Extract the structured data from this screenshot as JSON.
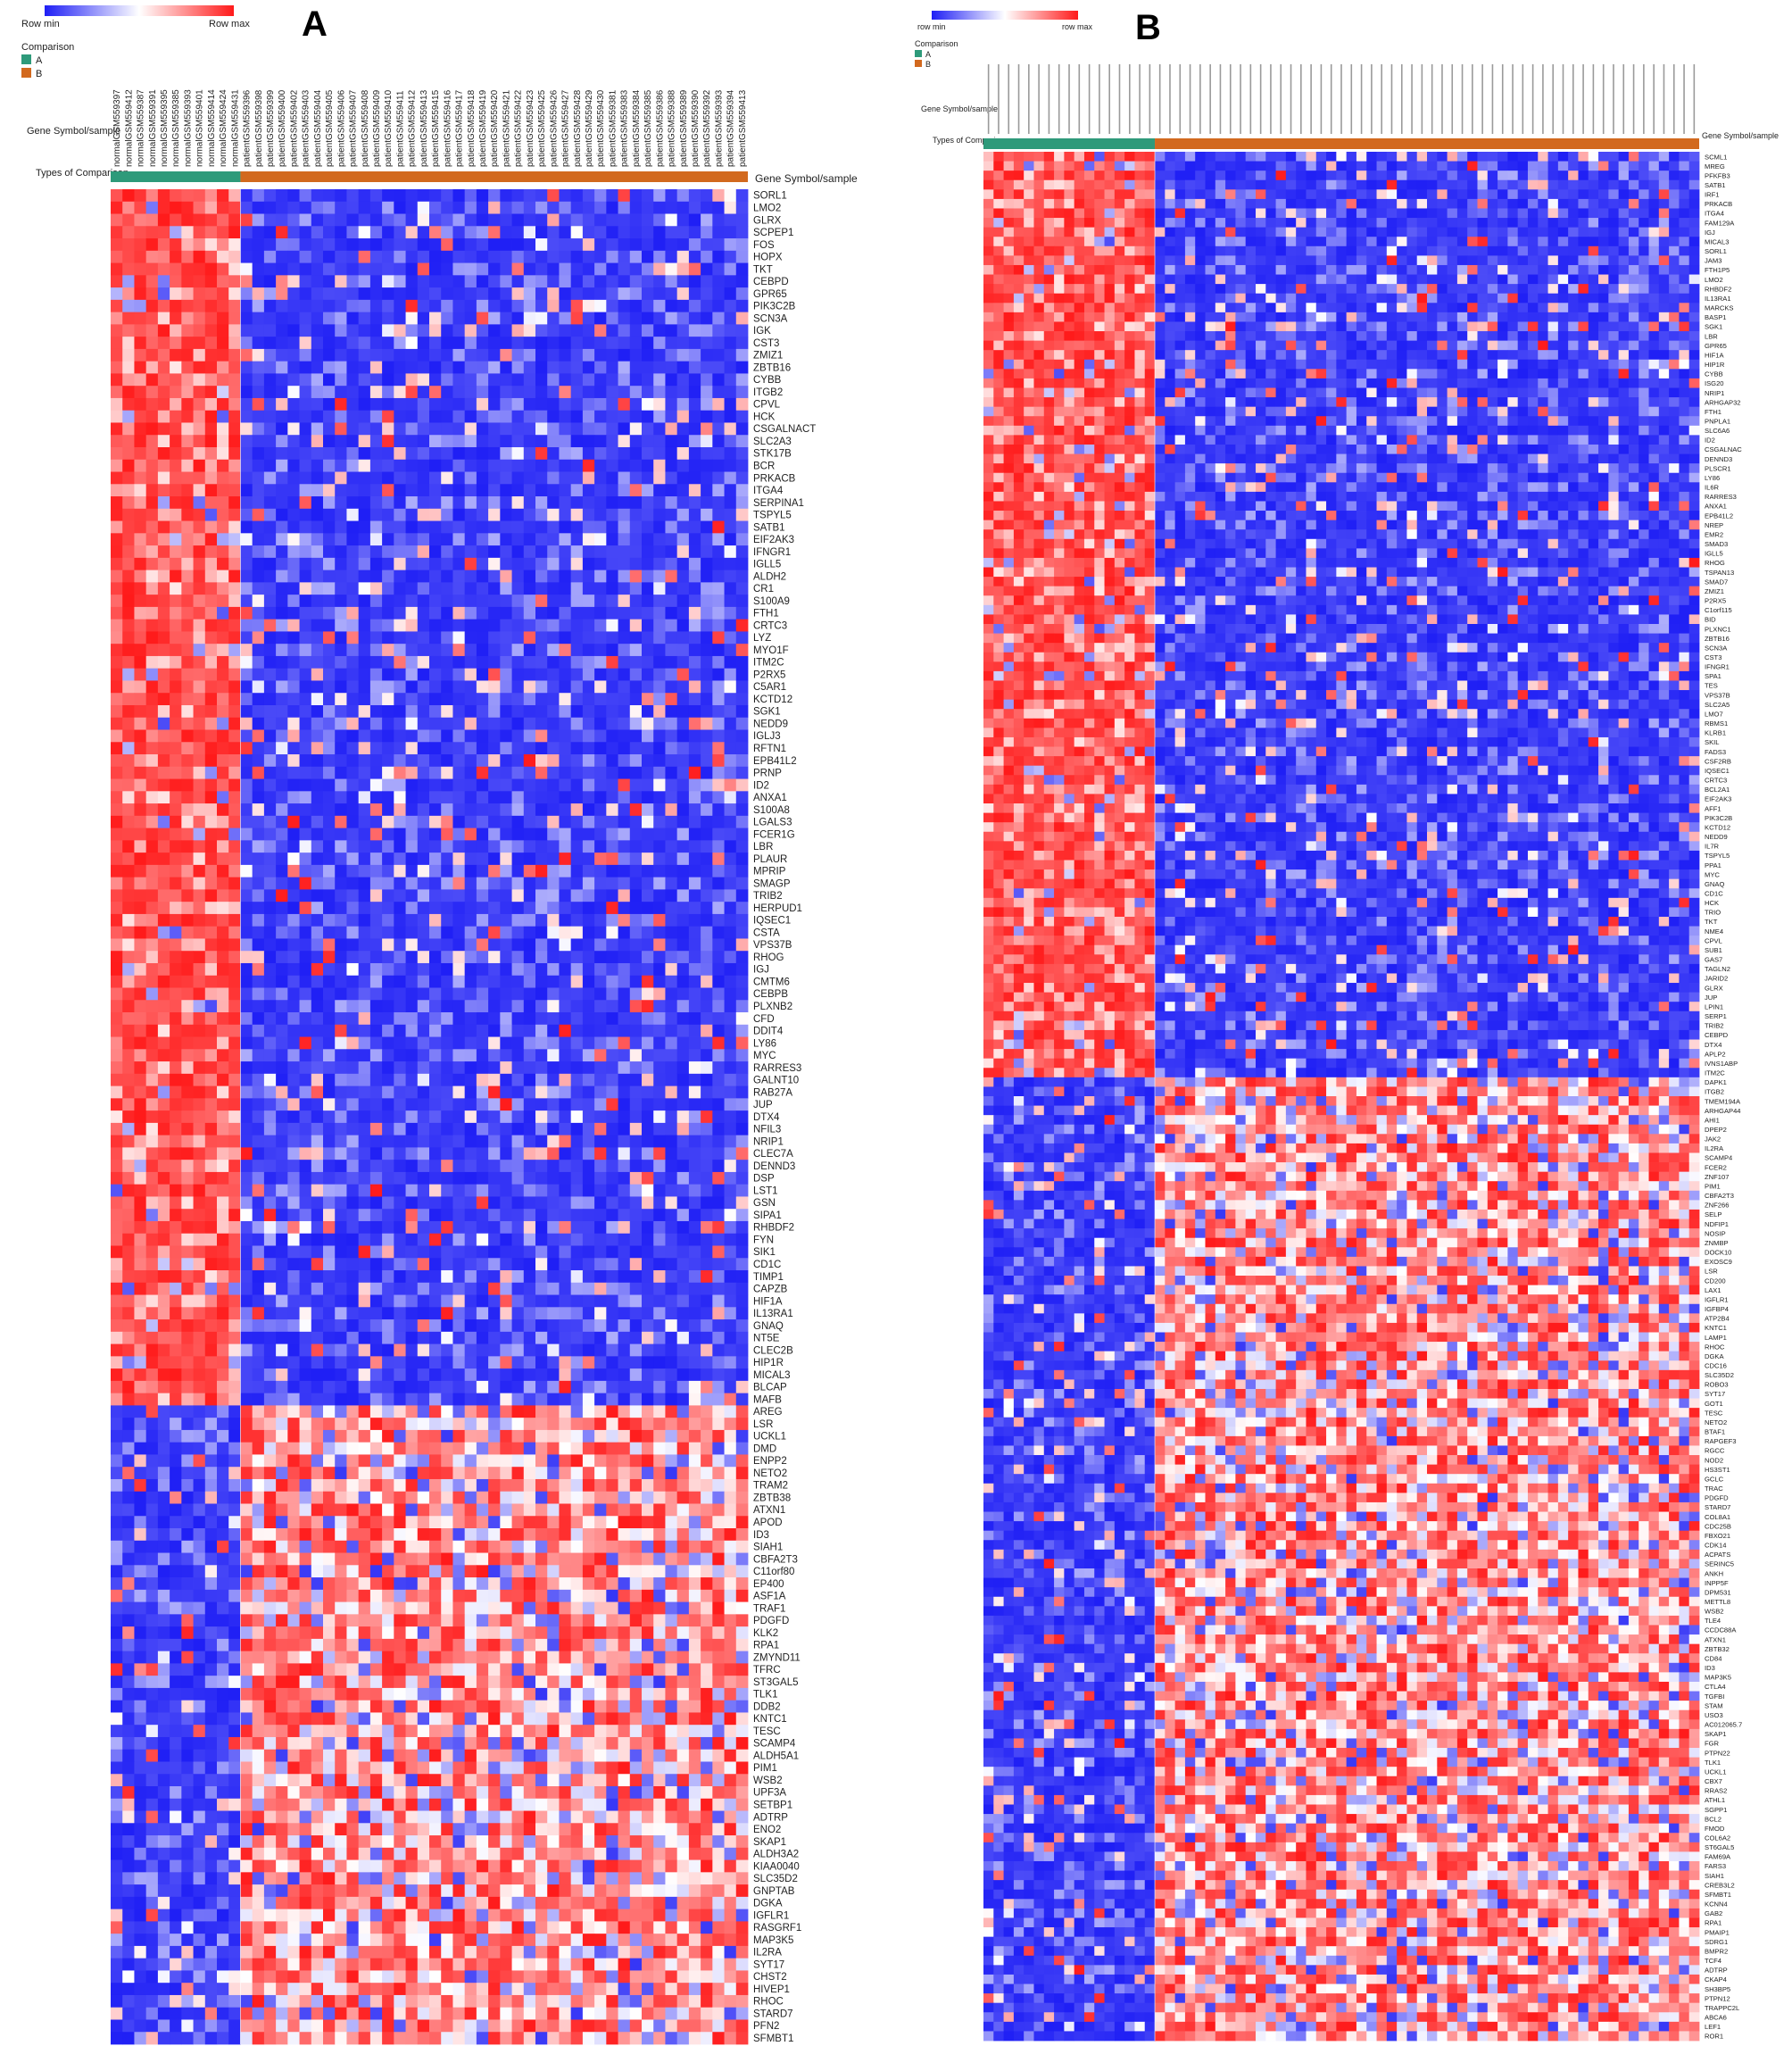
{
  "panels": {
    "A": {
      "letter": "A",
      "legend": {
        "min_label": "Row min",
        "max_label": "Row max",
        "title": "Comparison",
        "groups": [
          "A",
          "B"
        ]
      },
      "header_left": "Gene Symbol/sample",
      "header_right": "Gene Symbol/sample",
      "type_label": "Types of Comparison",
      "samples_normal": [
        "normalGSM559397",
        "normalGSM559412",
        "normalGSM559387",
        "normalGSM559391",
        "normalGSM559395",
        "normalGSM559385",
        "normalGSM559393",
        "normalGSM559401",
        "normalGSM559414",
        "normalGSM559424",
        "normalGSM559431"
      ],
      "samples_patient": [
        "patientGSM559396",
        "patientGSM559398",
        "patientGSM559399",
        "patientGSM559400",
        "patientGSM559402",
        "patientGSM559403",
        "patientGSM559404",
        "patientGSM559405",
        "patientGSM559406",
        "patientGSM559407",
        "patientGSM559408",
        "patientGSM559409",
        "patientGSM559410",
        "patientGSM559411",
        "patientGSM559412",
        "patientGSM559413",
        "patientGSM559415",
        "patientGSM559416",
        "patientGSM559417",
        "patientGSM559418",
        "patientGSM559419",
        "patientGSM559420",
        "patientGSM559421",
        "patientGSM559422",
        "patientGSM559423",
        "patientGSM559425",
        "patientGSM559426",
        "patientGSM559427",
        "patientGSM559428",
        "patientGSM559429",
        "patientGSM559430",
        "patientGSM559381",
        "patientGSM559383",
        "patientGSM559384",
        "patientGSM559385",
        "patientGSM559386",
        "patientGSM559388",
        "patientGSM559389",
        "patientGSM559390",
        "patientGSM559392",
        "patientGSM559393",
        "patientGSM559394",
        "patientGSM559413"
      ],
      "up_count": 99,
      "genes": [
        "SORL1",
        "LMO2",
        "GLRX",
        "SCPEP1",
        "FOS",
        "HOPX",
        "TKT",
        "CEBPD",
        "GPR65",
        "PIK3C2B",
        "SCN3A",
        "IGK",
        "CST3",
        "ZMIZ1",
        "ZBTB16",
        "CYBB",
        "ITGB2",
        "CPVL",
        "HCK",
        "CSGALNACT",
        "SLC2A3",
        "STK17B",
        "BCR",
        "PRKACB",
        "ITGA4",
        "SERPINA1",
        "TSPYL5",
        "SATB1",
        "EIF2AK3",
        "IFNGR1",
        "IGLL5",
        "ALDH2",
        "CR1",
        "S100A9",
        "FTH1",
        "CRTC3",
        "LYZ",
        "MYO1F",
        "ITM2C",
        "P2RX5",
        "C5AR1",
        "KCTD12",
        "SGK1",
        "NEDD9",
        "IGLJ3",
        "RFTN1",
        "EPB41L2",
        "PRNP",
        "ID2",
        "ANXA1",
        "S100A8",
        "LGALS3",
        "FCER1G",
        "LBR",
        "PLAUR",
        "MPRIP",
        "SMAGP",
        "TRIB2",
        "HERPUD1",
        "IQSEC1",
        "CSTA",
        "VPS37B",
        "RHOG",
        "IGJ",
        "CMTM6",
        "CEBPB",
        "PLXNB2",
        "CFD",
        "DDIT4",
        "LY86",
        "MYC",
        "RARRES3",
        "GALNT10",
        "RAB27A",
        "JUP",
        "DTX4",
        "NFIL3",
        "NRIP1",
        "CLEC7A",
        "DENND3",
        "DSP",
        "LST1",
        "GSN",
        "SIPA1",
        "RHBDF2",
        "FYN",
        "SIK1",
        "CD1C",
        "TIMP1",
        "CAPZB",
        "HIF1A",
        "IL13RA1",
        "GNAQ",
        "NT5E",
        "CLEC2B",
        "HIP1R",
        "MICAL3",
        "BLCAP",
        "MAFB",
        "AREG",
        "LSR",
        "UCKL1",
        "DMD",
        "ENPP2",
        "NETO2",
        "TRAM2",
        "ZBTB38",
        "ATXN1",
        "APOD",
        "ID3",
        "SIAH1",
        "CBFA2T3",
        "C11orf80",
        "EP400",
        "ASF1A",
        "TRAF1",
        "PDGFD",
        "KLK2",
        "RPA1",
        "ZMYND11",
        "TFRC",
        "ST3GAL5",
        "TLK1",
        "DDB2",
        "KNTC1",
        "TESC",
        "SCAMP4",
        "ALDH5A1",
        "PIM1",
        "WSB2",
        "UPF3A",
        "SETBP1",
        "ADTRP",
        "ENO2",
        "SKAP1",
        "ALDH3A2",
        "KIAA0040",
        "SLC35D2",
        "GNPTAB",
        "DGKA",
        "IGFLR1",
        "RASGRF1",
        "MAP3K5",
        "IL2RA",
        "SYT17",
        "CHST2",
        "HIVEP1",
        "RHOC",
        "STARD7",
        "PFN2",
        "SFMBT1"
      ]
    },
    "B": {
      "letter": "B",
      "legend": {
        "min_label": "row min",
        "max_label": "row max",
        "title": "Comparison",
        "groups": [
          "A",
          "B"
        ]
      },
      "header_left": "Gene Symbol/sample",
      "header_right": "Gene Symbol/sample",
      "type_label": "Types of Comparison",
      "normal_count": 17,
      "patient_count": 54,
      "up_count": 98,
      "genes": [
        "SCML1",
        "MREG",
        "PFKFB3",
        "SATB1",
        "IRF1",
        "PRKACB",
        "ITGA4",
        "FAM129A",
        "IGJ",
        "MICAL3",
        "SORL1",
        "JAM3",
        "FTH1P5",
        "LMO2",
        "RHBDF2",
        "IL13RA1",
        "MARCKS",
        "BASP1",
        "SGK1",
        "LBR",
        "GPR65",
        "HIF1A",
        "HIP1R",
        "CYBB",
        "ISG20",
        "NRIP1",
        "ARHGAP32",
        "FTH1",
        "PNPLA1",
        "SLC6A6",
        "ID2",
        "CSGALNAC",
        "DENND3",
        "PLSCR1",
        "LY86",
        "IL6R",
        "RARRES3",
        "ANXA1",
        "EPB41L2",
        "NREP",
        "EMR2",
        "SMAD3",
        "IGLL5",
        "RHOG",
        "TSPAN13",
        "SMAD7",
        "ZMIZ1",
        "P2RX5",
        "C1orf115",
        "BID",
        "PLXNC1",
        "ZBTB16",
        "SCN3A",
        "CST3",
        "IFNGR1",
        "SPA1",
        "TES",
        "VPS37B",
        "SLC2A5",
        "LMO7",
        "RBMS1",
        "KLRB1",
        "SKIL",
        "FADS3",
        "CSF2RB",
        "IQSEC1",
        "CRTC3",
        "BCL2A1",
        "EIF2AK3",
        "AFF1",
        "PIK3C2B",
        "KCTD12",
        "NEDD9",
        "IL7R",
        "TSPYL5",
        "PPA1",
        "MYC",
        "GNAQ",
        "CD1C",
        "HCK",
        "TRIO",
        "TKT",
        "NME4",
        "CPVL",
        "SUB1",
        "GAS7",
        "TAGLN2",
        "JARID2",
        "GLRX",
        "JUP",
        "LPIN1",
        "SERP1",
        "TRIB2",
        "CEBPD",
        "DTX4",
        "APLP2",
        "IVNS1ABP",
        "ITM2C",
        "DAPK1",
        "ITGB2",
        "TMEM194A",
        "ARHGAP44",
        "AHI1",
        "DPEP2",
        "JAK2",
        "IL2RA",
        "SCAMP4",
        "FCER2",
        "ZNF107",
        "PIM1",
        "CBFA2T3",
        "ZNF266",
        "SELP",
        "NDFIP1",
        "NOSIP",
        "ZNMBP",
        "DOCK10",
        "EXOSC9",
        "LSR",
        "CD200",
        "LAX1",
        "IGFLR1",
        "IGFBP4",
        "ATP2B4",
        "KNTC1",
        "LAMP1",
        "RHOC",
        "DGKA",
        "CDC16",
        "SLC35D2",
        "ROBO3",
        "SYT17",
        "GOT1",
        "TESC",
        "NETO2",
        "BTAF1",
        "RAPGEF3",
        "RGCC",
        "NOD2",
        "HS3ST1",
        "GCLC",
        "TRAC",
        "PDGFD",
        "STARD7",
        "COL8A1",
        "CDC25B",
        "FBXO21",
        "CDK14",
        "ACPATS",
        "SERINC5",
        "ANKH",
        "INPP5F",
        "DPM531",
        "METTL8",
        "WSB2",
        "TLE4",
        "CCDC88A",
        "ATXN1",
        "ZBTB32",
        "CD84",
        "ID3",
        "MAP3K5",
        "CTLA4",
        "TGFBI",
        "STAM",
        "USO3",
        "AC012065.7",
        "SKAP1",
        "FGR",
        "PTPN22",
        "TLK1",
        "UCKL1",
        "CBX7",
        "RRAS2",
        "ATHL1",
        "SGPP1",
        "BCL2",
        "FMOD",
        "COL6A2",
        "ST6GAL5",
        "FAM69A",
        "FARS3",
        "SIAH1",
        "CREB3L2",
        "SFMBT1",
        "KCNN4",
        "GAB2",
        "RPA1",
        "PMAIP1",
        "SDRG1",
        "BMPR2",
        "TCF4",
        "ADTRP",
        "CKAP4",
        "SH3BP5",
        "PTPN12",
        "TRAPPC2L",
        "ABCA6",
        "LEF1",
        "ROR1"
      ]
    }
  },
  "colors": {
    "low": "#1f1ff5",
    "mid": "#ffffff",
    "high": "#ff1a1a",
    "group_normal": "#2e9a7a",
    "group_patient": "#d2691e"
  },
  "chart_data": [
    {
      "type": "heatmap",
      "panel": "A",
      "value_scale": "row-normalized, row min to row max",
      "groups": [
        {
          "name": "A",
          "samples": 11
        },
        {
          "name": "B",
          "samples": 43
        }
      ],
      "pattern": "top 99 genes high in group A, low in group B; remaining genes low in A, high in B"
    },
    {
      "type": "heatmap",
      "panel": "B",
      "value_scale": "row-normalized, row min to row max",
      "groups": [
        {
          "name": "A",
          "samples": 17
        },
        {
          "name": "B",
          "samples": 54
        }
      ],
      "pattern": "top 98 genes high in group A, low in group B; remaining genes low in A, high in B"
    }
  ]
}
